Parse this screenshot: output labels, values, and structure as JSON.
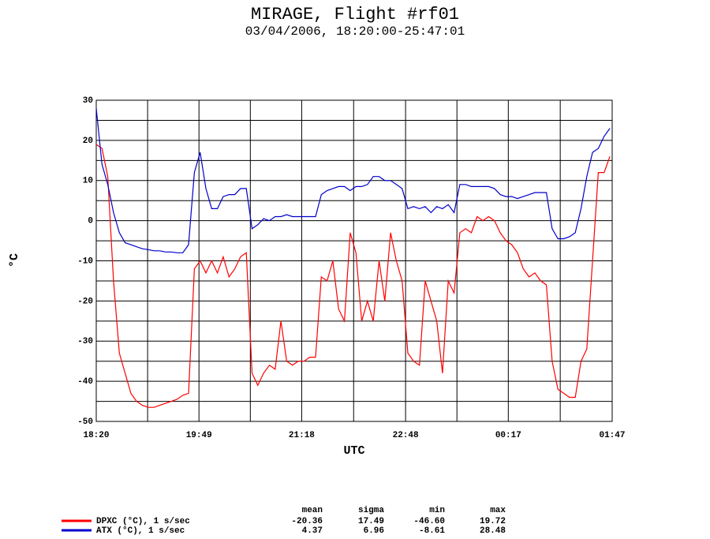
{
  "chart_data": {
    "type": "line",
    "title": "MIRAGE, Flight #rf01",
    "subtitle": "03/04/2006, 18:20:00-25:47:01",
    "xlabel": "UTC",
    "ylabel": "°C",
    "x": [
      "18:20",
      "18:25",
      "18:30",
      "18:35",
      "18:40",
      "18:45",
      "18:50",
      "18:55",
      "19:00",
      "19:05",
      "19:10",
      "19:15",
      "19:20",
      "19:25",
      "19:30",
      "19:35",
      "19:40",
      "19:45",
      "19:50",
      "19:55",
      "20:00",
      "20:05",
      "20:10",
      "20:15",
      "20:20",
      "20:25",
      "20:30",
      "20:35",
      "20:40",
      "20:45",
      "20:50",
      "20:55",
      "21:00",
      "21:05",
      "21:10",
      "21:15",
      "21:20",
      "21:25",
      "21:30",
      "21:35",
      "21:40",
      "21:45",
      "21:50",
      "21:55",
      "22:00",
      "22:05",
      "22:10",
      "22:15",
      "22:20",
      "22:25",
      "22:30",
      "22:35",
      "22:40",
      "22:45",
      "22:50",
      "22:55",
      "23:00",
      "23:05",
      "23:10",
      "23:15",
      "23:20",
      "23:25",
      "23:30",
      "23:35",
      "23:40",
      "23:45",
      "23:50",
      "23:55",
      "00:00",
      "00:05",
      "00:10",
      "00:15",
      "00:20",
      "00:25",
      "00:30",
      "00:35",
      "00:40",
      "00:45",
      "00:50",
      "00:55",
      "01:00",
      "01:05",
      "01:10",
      "01:15",
      "01:20",
      "01:25",
      "01:30",
      "01:35",
      "01:40",
      "01:45"
    ],
    "series": [
      {
        "name": "DPXC (°C), 1 s/sec",
        "color": "#ff0000",
        "values": [
          19,
          18,
          11,
          -15,
          -33,
          -38,
          -43,
          -45,
          -46,
          -46.5,
          -46.5,
          -46,
          -45.5,
          -45,
          -44.5,
          -43.5,
          -43,
          -12,
          -10,
          -13,
          -10,
          -13,
          -9,
          -14,
          -12,
          -9,
          -8,
          -38,
          -41,
          -38,
          -36,
          -37,
          -25,
          -35,
          -36,
          -35,
          -35,
          -34,
          -34,
          -14,
          -15,
          -10,
          -22,
          -25,
          -3,
          -8,
          -25,
          -20,
          -25,
          -10,
          -20,
          -3,
          -10,
          -15,
          -33,
          -35,
          -36,
          -15,
          -20,
          -25,
          -38,
          -15,
          -18,
          -3,
          -2,
          -3,
          1,
          0,
          1,
          0,
          -3,
          -5,
          -6,
          -8,
          -12,
          -14,
          -13,
          -15,
          -16,
          -35,
          -42,
          -43,
          -44,
          -44,
          -35,
          -32,
          -10,
          12,
          12,
          16
        ]
      },
      {
        "name": "ATX (°C), 1 s/sec",
        "color": "#0000cc",
        "values": [
          28,
          14,
          9,
          2,
          -3,
          -5.5,
          -6,
          -6.5,
          -7,
          -7.2,
          -7.5,
          -7.5,
          -7.8,
          -7.8,
          -8,
          -8,
          -6,
          12,
          17,
          8,
          3,
          3,
          6,
          6.5,
          6.5,
          8,
          8,
          -2,
          -1,
          0.5,
          0,
          1,
          1,
          1.5,
          1,
          1,
          1,
          1,
          1,
          6.5,
          7.5,
          8,
          8.5,
          8.5,
          7.5,
          8.5,
          8.5,
          9,
          11,
          11,
          10,
          10,
          9,
          8,
          3,
          3.5,
          3,
          3.5,
          2,
          3.5,
          3,
          4,
          2,
          9,
          9,
          8.5,
          8.5,
          8.5,
          8.5,
          8,
          6.5,
          6,
          6,
          5.5,
          6,
          6.5,
          7,
          7,
          7,
          -2,
          -4.5,
          -4.5,
          -4,
          -3,
          3,
          11,
          17,
          18,
          21,
          23
        ]
      }
    ],
    "xlim": [
      "18:20",
      "01:47"
    ],
    "xticks": [
      "18:20",
      "19:49",
      "21:18",
      "22:48",
      "00:17",
      "01:47"
    ],
    "ylim": [
      -50,
      30
    ],
    "yticks": [
      -50,
      -40,
      -30,
      -20,
      -10,
      0,
      10,
      20,
      30
    ],
    "grid": true,
    "stats": {
      "columns": [
        "mean",
        "sigma",
        "min",
        "max"
      ],
      "rows": [
        [
          -20.36,
          17.49,
          -46.6,
          19.72
        ],
        [
          4.37,
          6.96,
          -8.61,
          28.48
        ]
      ],
      "row_labels_printed": [
        {
          "value": -46.6,
          "label": "-46.60"
        }
      ]
    }
  }
}
